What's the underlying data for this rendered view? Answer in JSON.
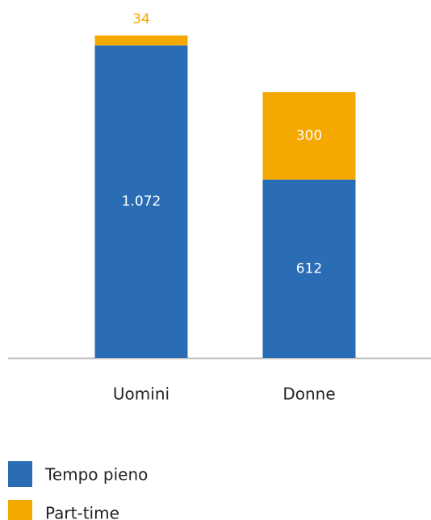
{
  "chart_data": {
    "type": "stacked_bar",
    "categories": [
      "Uomini",
      "Donne"
    ],
    "series": [
      {
        "name": "Tempo pieno",
        "color": "#2a6db5",
        "values": [
          1072,
          612
        ],
        "value_labels": [
          "1.072",
          "612"
        ]
      },
      {
        "name": "Part-time",
        "color": "#f5a800",
        "values": [
          34,
          300
        ]
      }
    ],
    "legend": "bottom-left"
  }
}
